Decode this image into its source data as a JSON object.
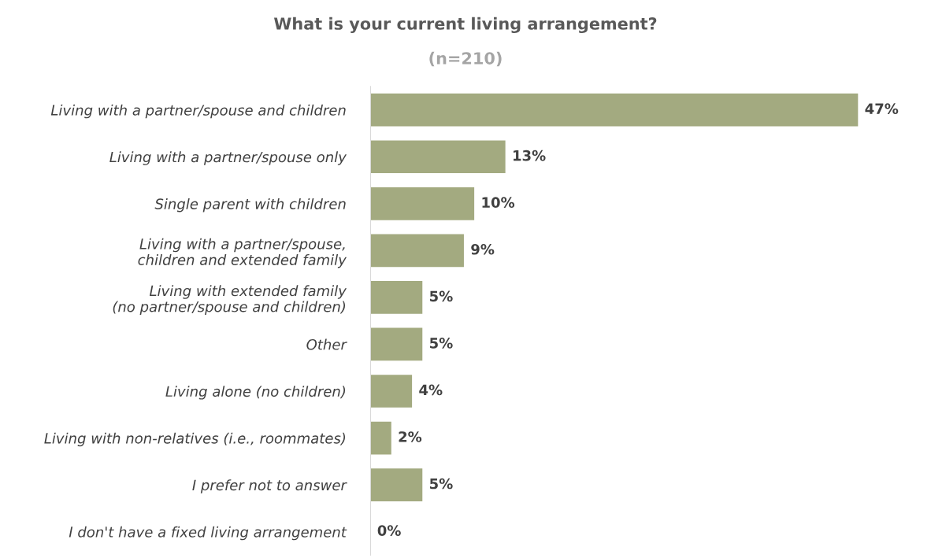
{
  "chart_data": {
    "type": "bar",
    "orientation": "horizontal",
    "title": "What is your current living arrangement?",
    "subtitle": "(n=210)",
    "categories": [
      "Living with a partner/spouse and children",
      "Living with a partner/spouse only",
      "Single parent with children",
      "Living with a partner/spouse,\nchildren and extended family",
      "Living with extended family\n(no partner/spouse and children)",
      "Other",
      "Living alone (no children)",
      "Living with non-relatives (i.e., roommates)",
      "I prefer not to answer",
      "I don't have a fixed living arrangement"
    ],
    "values": [
      47,
      13,
      10,
      9,
      5,
      5,
      4,
      2,
      5,
      0
    ],
    "value_labels": [
      "47%",
      "13%",
      "10%",
      "9%",
      "5%",
      "5%",
      "4%",
      "2%",
      "5%",
      "0%"
    ],
    "color": "#a3aa80",
    "grid": false,
    "legend": false
  }
}
